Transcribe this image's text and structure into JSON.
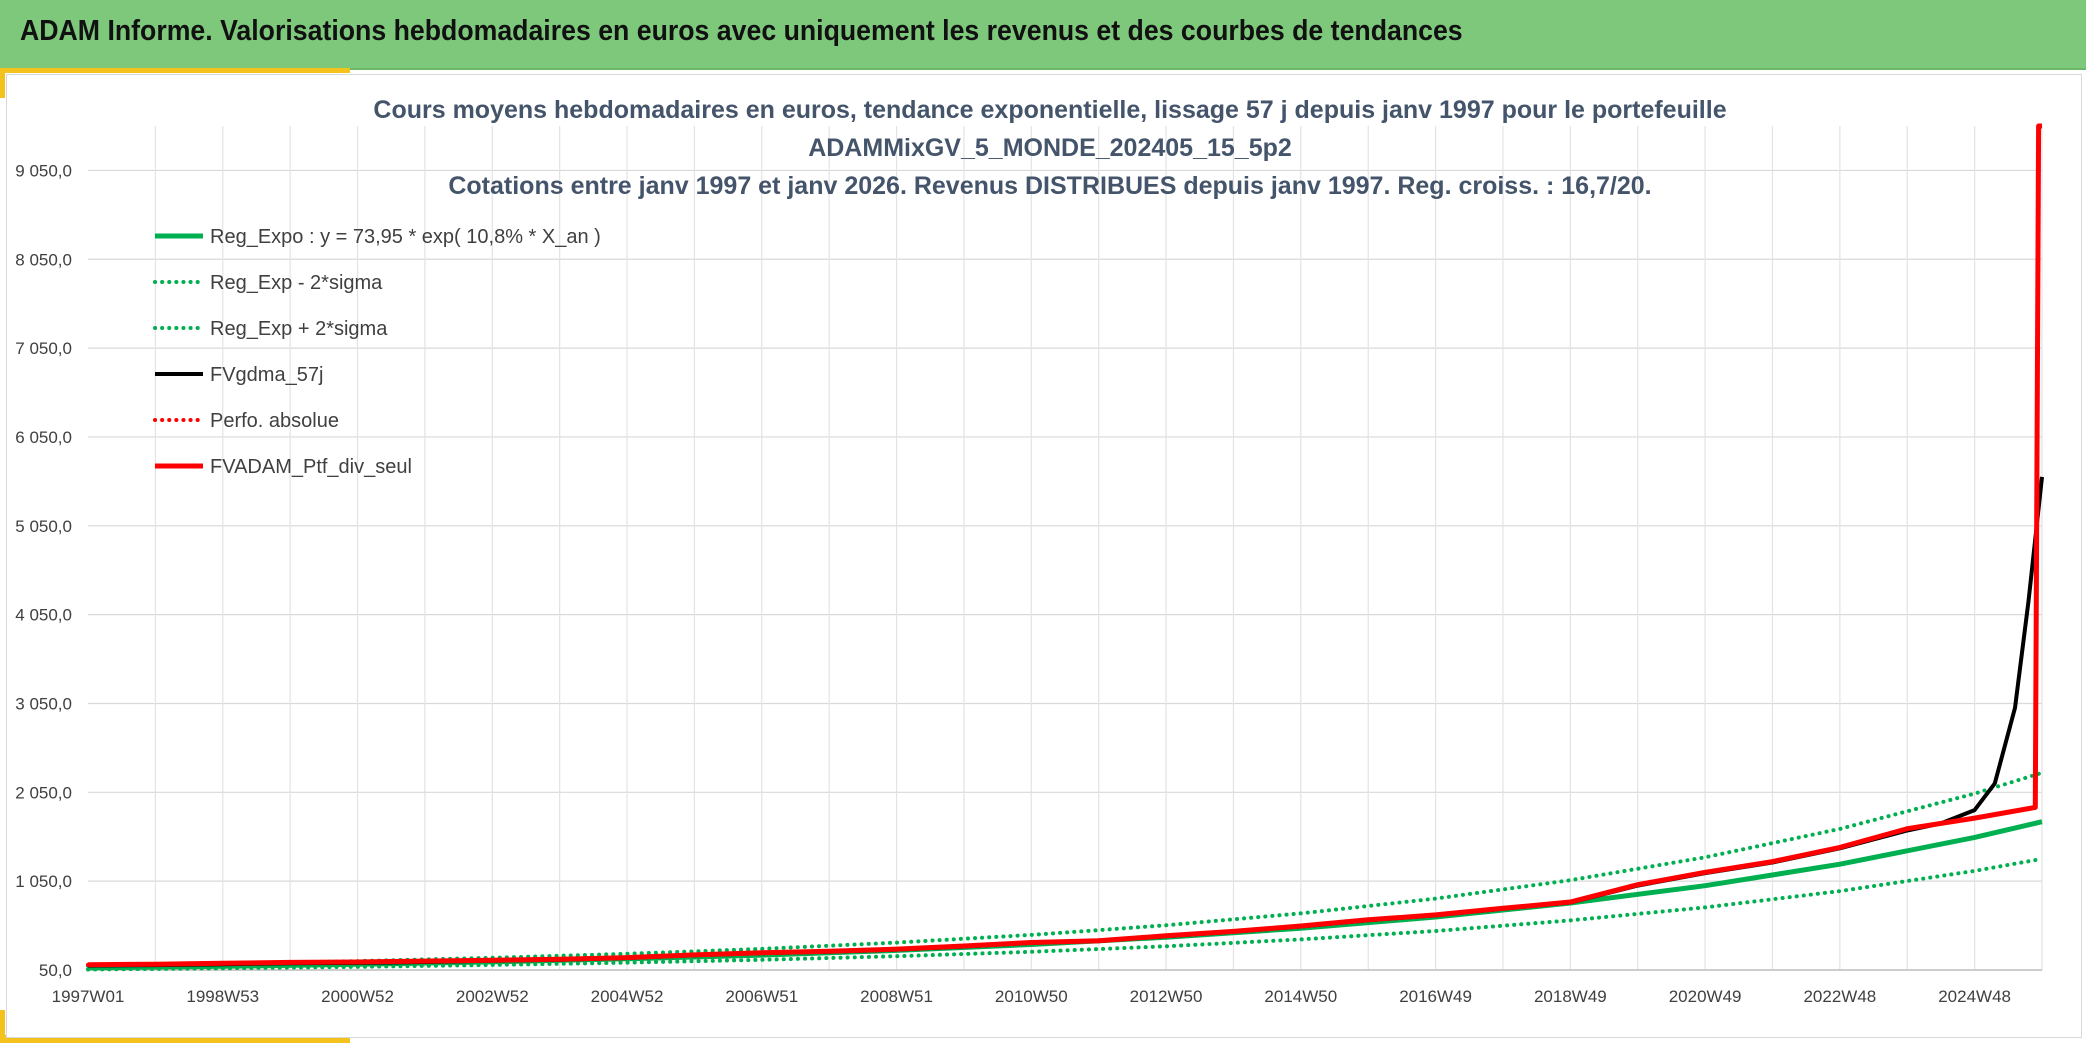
{
  "banner": {
    "title": "ADAM Informe. Valorisations hebdomadaires en euros avec uniquement les revenus et des courbes de tendances",
    "background_color": "#7ec87c",
    "accent_color": "#f4c21c"
  },
  "chart_data": {
    "type": "line",
    "title": [
      "Cours moyens hebdomadaires en euros, tendance exponentielle, lissage 57 j depuis janv 1997 pour le portefeuille",
      "ADAMMixGV_5_MONDE_202405_15_5p2",
      "Cotations entre janv 1997 et janv 2026. Revenus DISTRIBUES depuis janv 1997. Reg. croiss. : 16,7/20."
    ],
    "xlabel": "",
    "ylabel": "",
    "ylim": [
      50,
      9550
    ],
    "xlim": [
      1997.0,
      2026.0
    ],
    "y_ticks": [
      50,
      1050,
      2050,
      3050,
      4050,
      5050,
      6050,
      7050,
      8050,
      9050
    ],
    "y_tick_labels": [
      "50,0",
      "1 050,0",
      "2 050,0",
      "3 050,0",
      "4 050,0",
      "5 050,0",
      "6 050,0",
      "7 050,0",
      "8 050,0",
      "9 050,0"
    ],
    "x_tick_labels": [
      "1997W01",
      "1998W53",
      "2000W52",
      "2002W52",
      "2004W52",
      "2006W51",
      "2008W51",
      "2010W50",
      "2012W50",
      "2014W50",
      "2016W49",
      "2018W49",
      "2020W49",
      "2022W48",
      "2024W48"
    ],
    "x_tick_positions": [
      1997.0,
      1999.0,
      2001.0,
      2003.0,
      2005.0,
      2007.0,
      2009.0,
      2011.0,
      2013.0,
      2015.0,
      2017.0,
      2019.0,
      2021.0,
      2023.0,
      2025.0
    ],
    "grid": true,
    "legend_position": "top-left",
    "series": [
      {
        "name": "Reg_Expo : y = 73,95 * exp( 10,8% *  X_an )",
        "color": "#00b050",
        "style": "solid",
        "width": 5,
        "x": [
          1997,
          1999,
          2001,
          2003,
          2005,
          2007,
          2009,
          2011,
          2013,
          2015,
          2017,
          2019,
          2021,
          2023,
          2025,
          2026
        ],
        "y": [
          74,
          92,
          114,
          141,
          176,
          218,
          271,
          337,
          419,
          521,
          647,
          804,
          999,
          1241,
          1542,
          1719
        ]
      },
      {
        "name": "Reg_Exp - 2*sigma",
        "color": "#00b050",
        "style": "dotted",
        "width": 4,
        "x": [
          1997,
          1999,
          2001,
          2003,
          2005,
          2007,
          2009,
          2011,
          2013,
          2015,
          2017,
          2019,
          2021,
          2023,
          2025,
          2026
        ],
        "y": [
          56,
          69,
          86,
          107,
          133,
          165,
          205,
          255,
          317,
          394,
          489,
          608,
          755,
          938,
          1166,
          1300
        ]
      },
      {
        "name": "Reg_Exp + 2*sigma",
        "color": "#00b050",
        "style": "dotted",
        "width": 4,
        "x": [
          1997,
          1999,
          2001,
          2003,
          2005,
          2007,
          2009,
          2011,
          2013,
          2015,
          2017,
          2019,
          2021,
          2023,
          2025,
          2026
        ],
        "y": [
          97,
          121,
          150,
          187,
          232,
          288,
          358,
          445,
          553,
          687,
          854,
          1061,
          1318,
          1638,
          2035,
          2270
        ]
      },
      {
        "name": "FVgdma_57j",
        "color": "#000000",
        "style": "solid",
        "width": 4,
        "x": [
          1997,
          1998,
          1999,
          2000,
          2001,
          2002,
          2003,
          2004,
          2005,
          2006,
          2007,
          2008,
          2009,
          2010,
          2011,
          2012,
          2013,
          2014,
          2015,
          2016,
          2017,
          2018,
          2019,
          2020,
          2021,
          2022,
          2023,
          2024,
          2024.5,
          2025,
          2025.3,
          2025.6,
          2025.8,
          2026
        ],
        "y": [
          100,
          105,
          115,
          125,
          130,
          140,
          155,
          165,
          185,
          215,
          240,
          255,
          280,
          315,
          355,
          375,
          430,
          480,
          540,
          610,
          665,
          740,
          810,
          1000,
          1140,
          1260,
          1420,
          1620,
          1700,
          1850,
          2150,
          3000,
          4200,
          5600
        ]
      },
      {
        "name": "Perfo. absolue",
        "color": "#ff0000",
        "style": "dotted",
        "width": 4,
        "x": [
          1997,
          1998,
          1999,
          2000,
          2001,
          2002,
          2003,
          2004,
          2005,
          2006,
          2007,
          2008,
          2009,
          2010,
          2011,
          2012,
          2013,
          2014,
          2015,
          2016,
          2017,
          2018,
          2019,
          2020,
          2021,
          2022,
          2023,
          2024,
          2025,
          2025.9,
          2025.95,
          2026
        ],
        "y": [
          110,
          115,
          125,
          135,
          140,
          150,
          160,
          170,
          190,
          220,
          245,
          260,
          285,
          320,
          360,
          380,
          435,
          485,
          545,
          615,
          670,
          745,
          815,
          1010,
          1150,
          1270,
          1430,
          1640,
          1760,
          1880,
          9550,
          9550
        ]
      },
      {
        "name": "FVADAM_Ptf_div_seul",
        "color": "#ff0000",
        "style": "solid",
        "width": 5,
        "x": [
          1997,
          1998,
          1999,
          2000,
          2001,
          2002,
          2003,
          2004,
          2005,
          2006,
          2007,
          2008,
          2009,
          2010,
          2011,
          2012,
          2013,
          2014,
          2015,
          2016,
          2017,
          2018,
          2019,
          2020,
          2021,
          2022,
          2023,
          2024,
          2025,
          2025.9,
          2025.95,
          2026
        ],
        "y": [
          110,
          115,
          125,
          135,
          140,
          150,
          160,
          170,
          190,
          220,
          245,
          260,
          285,
          320,
          360,
          380,
          435,
          485,
          545,
          615,
          670,
          745,
          815,
          1010,
          1150,
          1270,
          1430,
          1640,
          1760,
          1880,
          9550,
          9550
        ]
      }
    ]
  }
}
